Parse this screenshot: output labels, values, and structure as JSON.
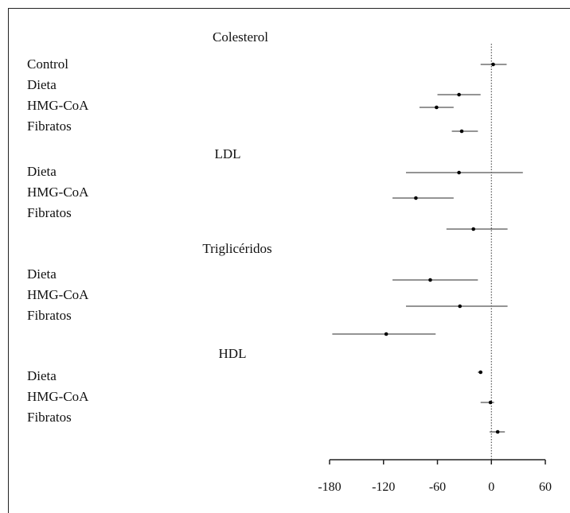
{
  "chart_data": {
    "type": "forest",
    "xlim": [
      -180,
      60
    ],
    "xticks": [
      -180,
      -120,
      -60,
      0,
      60
    ],
    "reference_line_x": 0,
    "groups": [
      {
        "title": "Colesterol",
        "rows": [
          {
            "label": "Control",
            "estimate": 2,
            "ci": [
              -12,
              17
            ]
          },
          {
            "label": "Dieta",
            "estimate": -36,
            "ci": [
              -60,
              -12
            ]
          },
          {
            "label": "HMG-CoA",
            "estimate": -61,
            "ci": [
              -80,
              -42
            ]
          },
          {
            "label": "Fibratos",
            "estimate": -33,
            "ci": [
              -44,
              -15
            ]
          }
        ]
      },
      {
        "title": "LDL",
        "rows": [
          {
            "label": "Dieta",
            "estimate": -36,
            "ci": [
              -95,
              35
            ]
          },
          {
            "label": "HMG-CoA",
            "estimate": -84,
            "ci": [
              -110,
              -42
            ]
          },
          {
            "label": "Fibratos",
            "estimate": -20,
            "ci": [
              -50,
              18
            ]
          }
        ]
      },
      {
        "title": "Triglicéridos",
        "rows": [
          {
            "label": "Dieta",
            "estimate": -68,
            "ci": [
              -110,
              -15
            ]
          },
          {
            "label": "HMG-CoA",
            "estimate": -35,
            "ci": [
              -95,
              18
            ]
          },
          {
            "label": "Fibratos",
            "estimate": -117,
            "ci": [
              -177,
              -62
            ]
          }
        ]
      },
      {
        "title": "HDL",
        "rows": [
          {
            "label": "Dieta",
            "estimate": -12,
            "ci": [
              -15,
              -10
            ]
          },
          {
            "label": "HMG-CoA",
            "estimate": -1,
            "ci": [
              -12,
              3
            ]
          },
          {
            "label": "Fibratos",
            "estimate": 7,
            "ci": [
              -2,
              15
            ]
          }
        ]
      }
    ]
  }
}
